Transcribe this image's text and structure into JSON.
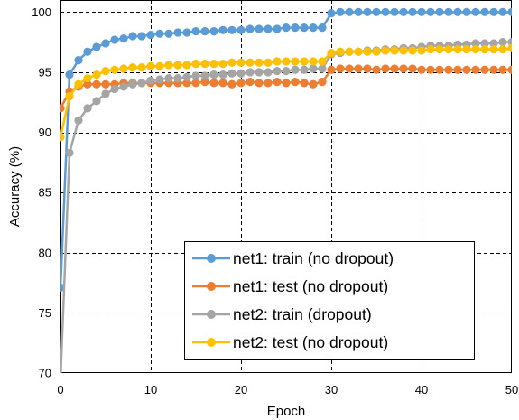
{
  "chart_data": {
    "type": "line",
    "title": "",
    "xlabel": "Epoch",
    "ylabel": "Accuracy (%)",
    "xlim": [
      0,
      50
    ],
    "ylim": [
      70,
      101
    ],
    "xticks": [
      0,
      10,
      20,
      30,
      40,
      50
    ],
    "yticks": [
      70,
      75,
      80,
      85,
      90,
      95,
      100
    ],
    "grid": "dashed",
    "legend_position": "bottom-right",
    "x": [
      0,
      1,
      2,
      3,
      4,
      5,
      6,
      7,
      8,
      9,
      10,
      11,
      12,
      13,
      14,
      15,
      16,
      17,
      18,
      19,
      20,
      21,
      22,
      23,
      24,
      25,
      26,
      27,
      28,
      29,
      30,
      31,
      32,
      33,
      34,
      35,
      36,
      37,
      38,
      39,
      40,
      41,
      42,
      43,
      44,
      45,
      46,
      47,
      48,
      49,
      50
    ],
    "series": [
      {
        "name": "net1: train (no dropout)",
        "color": "#5B9BD5",
        "values": [
          77.1,
          94.8,
          96.0,
          96.7,
          97.1,
          97.4,
          97.7,
          97.8,
          98.0,
          98.0,
          98.1,
          98.2,
          98.2,
          98.3,
          98.3,
          98.4,
          98.4,
          98.4,
          98.5,
          98.5,
          98.5,
          98.6,
          98.6,
          98.6,
          98.6,
          98.7,
          98.7,
          98.7,
          98.7,
          98.7,
          99.9,
          100.0,
          100.0,
          100.0,
          100.0,
          100.0,
          100.0,
          100.0,
          100.0,
          100.0,
          100.0,
          100.0,
          100.0,
          100.0,
          100.0,
          100.0,
          100.0,
          100.0,
          100.0,
          100.0,
          100.0
        ]
      },
      {
        "name": "net1: test (no dropout)",
        "color": "#ED7D31",
        "values": [
          92.0,
          93.4,
          93.8,
          94.0,
          94.0,
          94.0,
          94.0,
          94.1,
          94.1,
          94.1,
          94.1,
          94.1,
          94.1,
          94.1,
          94.1,
          94.1,
          94.2,
          94.1,
          94.1,
          94.0,
          94.1,
          94.2,
          94.1,
          94.1,
          94.2,
          94.1,
          94.2,
          94.1,
          94.0,
          94.2,
          95.2,
          95.3,
          95.3,
          95.3,
          95.3,
          95.2,
          95.3,
          95.3,
          95.3,
          95.3,
          95.2,
          95.2,
          95.2,
          95.2,
          95.2,
          95.2,
          95.2,
          95.2,
          95.2,
          95.2,
          95.2
        ]
      },
      {
        "name": "net2: train (dropout)",
        "color": "#A5A5A5",
        "values": [
          69.5,
          88.3,
          91.0,
          92.0,
          92.6,
          93.2,
          93.6,
          93.8,
          94.0,
          94.1,
          94.3,
          94.4,
          94.5,
          94.5,
          94.6,
          94.7,
          94.7,
          94.8,
          94.8,
          94.9,
          94.9,
          95.0,
          95.0,
          95.0,
          95.1,
          95.1,
          95.2,
          95.2,
          95.3,
          95.3,
          96.5,
          96.6,
          96.7,
          96.7,
          96.8,
          96.8,
          96.9,
          96.9,
          97.0,
          97.0,
          97.1,
          97.2,
          97.2,
          97.2,
          97.3,
          97.3,
          97.4,
          97.4,
          97.4,
          97.5,
          97.5
        ]
      },
      {
        "name": "net2: test (no dropout)",
        "color": "#FFC000",
        "values": [
          89.6,
          93.0,
          94.0,
          94.5,
          94.8,
          95.1,
          95.2,
          95.3,
          95.4,
          95.4,
          95.5,
          95.5,
          95.6,
          95.6,
          95.6,
          95.7,
          95.7,
          95.7,
          95.7,
          95.8,
          95.8,
          95.8,
          95.8,
          95.8,
          95.9,
          95.9,
          95.9,
          95.9,
          95.9,
          95.9,
          96.6,
          96.7,
          96.7,
          96.7,
          96.7,
          96.7,
          96.8,
          96.8,
          96.8,
          96.8,
          96.8,
          96.9,
          96.9,
          96.9,
          96.9,
          96.9,
          96.9,
          96.9,
          96.9,
          96.9,
          97.0
        ]
      }
    ]
  }
}
